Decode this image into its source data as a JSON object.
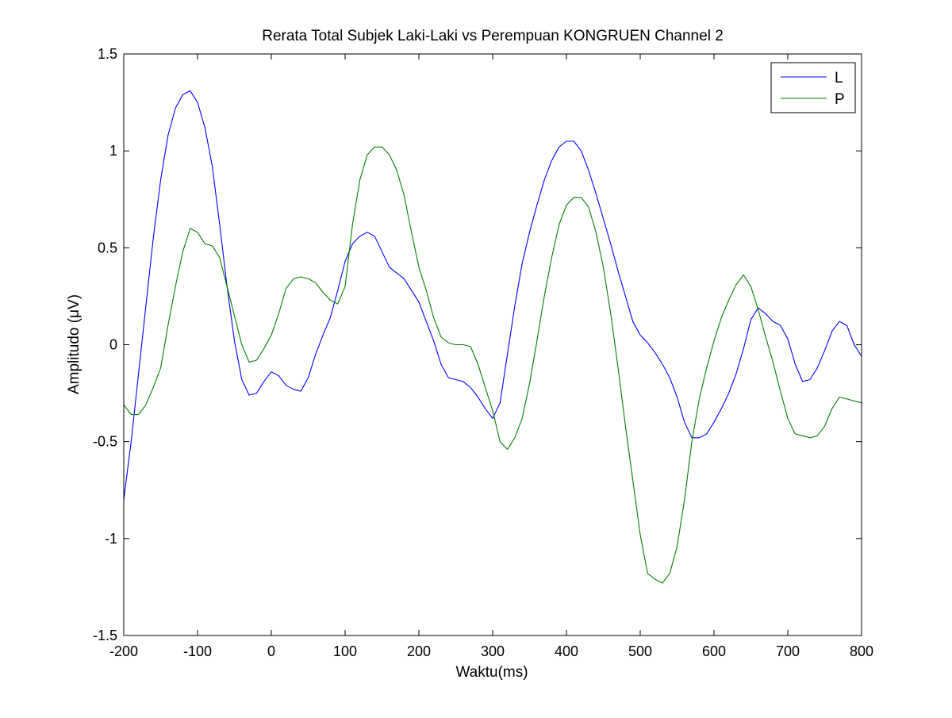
{
  "chart_data": {
    "type": "line",
    "title": "Rerata Total Subjek Laki-Laki vs Perempuan KONGRUEN Channel 2",
    "xlabel": "Waktu(ms)",
    "ylabel": "Amplitudo (μV)",
    "xlim": [
      -200,
      800
    ],
    "ylim": [
      -1.5,
      1.5
    ],
    "x_ticks": [
      -200,
      -100,
      0,
      100,
      200,
      300,
      400,
      500,
      600,
      700,
      800
    ],
    "x_tick_labels": [
      "-200",
      "-100",
      "0",
      "100",
      "200",
      "300",
      "400",
      "500",
      "600",
      "700",
      "800"
    ],
    "y_ticks": [
      -1.5,
      -1,
      -0.5,
      0,
      0.5,
      1,
      1.5
    ],
    "y_tick_labels": [
      "-1.5",
      "-1",
      "-0.5",
      "0",
      "0.5",
      "1",
      "1.5"
    ],
    "grid": false,
    "legend_position": "top-right",
    "series": [
      {
        "name": "L",
        "color": "#0000ff",
        "points": [
          [
            -200,
            -0.8
          ],
          [
            -190,
            -0.5
          ],
          [
            -180,
            -0.15
          ],
          [
            -170,
            0.2
          ],
          [
            -160,
            0.55
          ],
          [
            -150,
            0.85
          ],
          [
            -140,
            1.08
          ],
          [
            -130,
            1.22
          ],
          [
            -120,
            1.29
          ],
          [
            -110,
            1.31
          ],
          [
            -100,
            1.25
          ],
          [
            -90,
            1.12
          ],
          [
            -80,
            0.92
          ],
          [
            -70,
            0.62
          ],
          [
            -60,
            0.3
          ],
          [
            -50,
            0.02
          ],
          [
            -40,
            -0.18
          ],
          [
            -30,
            -0.26
          ],
          [
            -20,
            -0.25
          ],
          [
            -10,
            -0.19
          ],
          [
            0,
            -0.14
          ],
          [
            10,
            -0.16
          ],
          [
            20,
            -0.21
          ],
          [
            30,
            -0.23
          ],
          [
            40,
            -0.24
          ],
          [
            50,
            -0.17
          ],
          [
            60,
            -0.05
          ],
          [
            70,
            0.05
          ],
          [
            80,
            0.14
          ],
          [
            90,
            0.28
          ],
          [
            100,
            0.43
          ],
          [
            110,
            0.52
          ],
          [
            120,
            0.56
          ],
          [
            130,
            0.58
          ],
          [
            140,
            0.56
          ],
          [
            150,
            0.48
          ],
          [
            160,
            0.4
          ],
          [
            170,
            0.37
          ],
          [
            180,
            0.34
          ],
          [
            190,
            0.28
          ],
          [
            200,
            0.22
          ],
          [
            210,
            0.12
          ],
          [
            220,
            0.02
          ],
          [
            230,
            -0.1
          ],
          [
            240,
            -0.17
          ],
          [
            250,
            -0.18
          ],
          [
            260,
            -0.19
          ],
          [
            270,
            -0.22
          ],
          [
            280,
            -0.27
          ],
          [
            290,
            -0.33
          ],
          [
            300,
            -0.38
          ],
          [
            310,
            -0.3
          ],
          [
            320,
            -0.05
          ],
          [
            330,
            0.2
          ],
          [
            340,
            0.42
          ],
          [
            350,
            0.58
          ],
          [
            360,
            0.72
          ],
          [
            370,
            0.85
          ],
          [
            380,
            0.95
          ],
          [
            390,
            1.02
          ],
          [
            400,
            1.05
          ],
          [
            410,
            1.05
          ],
          [
            420,
            1.0
          ],
          [
            430,
            0.9
          ],
          [
            440,
            0.78
          ],
          [
            450,
            0.65
          ],
          [
            460,
            0.52
          ],
          [
            470,
            0.38
          ],
          [
            480,
            0.25
          ],
          [
            490,
            0.12
          ],
          [
            500,
            0.05
          ],
          [
            510,
            0.01
          ],
          [
            520,
            -0.04
          ],
          [
            530,
            -0.1
          ],
          [
            540,
            -0.17
          ],
          [
            550,
            -0.27
          ],
          [
            560,
            -0.4
          ],
          [
            570,
            -0.48
          ],
          [
            580,
            -0.48
          ],
          [
            590,
            -0.46
          ],
          [
            600,
            -0.4
          ],
          [
            610,
            -0.33
          ],
          [
            620,
            -0.25
          ],
          [
            630,
            -0.15
          ],
          [
            640,
            -0.02
          ],
          [
            650,
            0.13
          ],
          [
            660,
            0.19
          ],
          [
            670,
            0.16
          ],
          [
            680,
            0.12
          ],
          [
            690,
            0.1
          ],
          [
            700,
            0.03
          ],
          [
            710,
            -0.1
          ],
          [
            720,
            -0.19
          ],
          [
            730,
            -0.18
          ],
          [
            740,
            -0.12
          ],
          [
            750,
            -0.03
          ],
          [
            760,
            0.07
          ],
          [
            770,
            0.12
          ],
          [
            780,
            0.1
          ],
          [
            790,
            0.0
          ],
          [
            800,
            -0.06
          ]
        ]
      },
      {
        "name": "P",
        "color": "#007f00",
        "points": [
          [
            -200,
            -0.31
          ],
          [
            -190,
            -0.36
          ],
          [
            -180,
            -0.36
          ],
          [
            -170,
            -0.31
          ],
          [
            -160,
            -0.22
          ],
          [
            -150,
            -0.12
          ],
          [
            -140,
            0.1
          ],
          [
            -130,
            0.3
          ],
          [
            -120,
            0.48
          ],
          [
            -110,
            0.6
          ],
          [
            -100,
            0.58
          ],
          [
            -90,
            0.52
          ],
          [
            -80,
            0.51
          ],
          [
            -70,
            0.45
          ],
          [
            -60,
            0.3
          ],
          [
            -50,
            0.15
          ],
          [
            -40,
            0.0
          ],
          [
            -30,
            -0.09
          ],
          [
            -20,
            -0.08
          ],
          [
            -10,
            -0.02
          ],
          [
            0,
            0.05
          ],
          [
            10,
            0.16
          ],
          [
            20,
            0.29
          ],
          [
            30,
            0.34
          ],
          [
            40,
            0.35
          ],
          [
            50,
            0.34
          ],
          [
            60,
            0.32
          ],
          [
            70,
            0.27
          ],
          [
            80,
            0.23
          ],
          [
            90,
            0.21
          ],
          [
            100,
            0.3
          ],
          [
            110,
            0.62
          ],
          [
            120,
            0.85
          ],
          [
            130,
            0.98
          ],
          [
            140,
            1.02
          ],
          [
            150,
            1.02
          ],
          [
            160,
            0.98
          ],
          [
            170,
            0.9
          ],
          [
            180,
            0.77
          ],
          [
            190,
            0.58
          ],
          [
            200,
            0.4
          ],
          [
            210,
            0.28
          ],
          [
            220,
            0.14
          ],
          [
            230,
            0.04
          ],
          [
            240,
            0.01
          ],
          [
            250,
            0.0
          ],
          [
            260,
            0.0
          ],
          [
            270,
            -0.01
          ],
          [
            280,
            -0.1
          ],
          [
            290,
            -0.22
          ],
          [
            300,
            -0.34
          ],
          [
            310,
            -0.5
          ],
          [
            320,
            -0.54
          ],
          [
            330,
            -0.48
          ],
          [
            340,
            -0.38
          ],
          [
            350,
            -0.2
          ],
          [
            360,
            0.02
          ],
          [
            370,
            0.25
          ],
          [
            380,
            0.45
          ],
          [
            390,
            0.62
          ],
          [
            400,
            0.72
          ],
          [
            410,
            0.76
          ],
          [
            420,
            0.76
          ],
          [
            430,
            0.71
          ],
          [
            440,
            0.58
          ],
          [
            450,
            0.4
          ],
          [
            460,
            0.16
          ],
          [
            470,
            -0.12
          ],
          [
            480,
            -0.42
          ],
          [
            490,
            -0.7
          ],
          [
            500,
            -0.98
          ],
          [
            510,
            -1.18
          ],
          [
            520,
            -1.21
          ],
          [
            530,
            -1.23
          ],
          [
            540,
            -1.18
          ],
          [
            550,
            -1.04
          ],
          [
            560,
            -0.8
          ],
          [
            570,
            -0.5
          ],
          [
            580,
            -0.28
          ],
          [
            590,
            -0.12
          ],
          [
            600,
            0.02
          ],
          [
            610,
            0.14
          ],
          [
            620,
            0.23
          ],
          [
            630,
            0.31
          ],
          [
            640,
            0.36
          ],
          [
            650,
            0.3
          ],
          [
            660,
            0.18
          ],
          [
            670,
            0.04
          ],
          [
            680,
            -0.09
          ],
          [
            690,
            -0.24
          ],
          [
            700,
            -0.38
          ],
          [
            710,
            -0.46
          ],
          [
            720,
            -0.47
          ],
          [
            730,
            -0.48
          ],
          [
            740,
            -0.47
          ],
          [
            750,
            -0.42
          ],
          [
            760,
            -0.33
          ],
          [
            770,
            -0.27
          ],
          [
            780,
            -0.28
          ],
          [
            790,
            -0.29
          ],
          [
            800,
            -0.3
          ]
        ]
      }
    ]
  }
}
